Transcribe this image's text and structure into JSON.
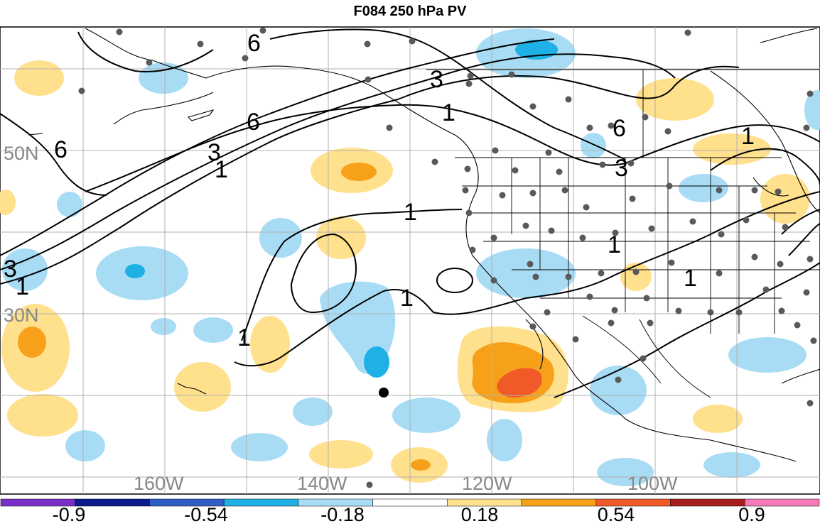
{
  "title": "F084 250 hPa PV",
  "map": {
    "longitude_labels": [
      "160W",
      "140W",
      "120W",
      "100W"
    ],
    "latitude_labels": [
      "50N",
      "30N"
    ],
    "contour_labels": [
      "6",
      "6",
      "6",
      "6",
      "3",
      "3",
      "3",
      "3",
      "1",
      "1",
      "1",
      "1",
      "1",
      "1",
      "1",
      "1",
      "1"
    ],
    "colors": {
      "light_yellow": "#ffe08c",
      "orange": "#f7a11a",
      "red_orange": "#f05a28",
      "light_blue": "#a8dcf5",
      "cyan": "#1fb0e6",
      "station_dot": "#595959"
    }
  },
  "colorbar": {
    "tick_labels": [
      "-0.9",
      "-0.54",
      "-0.18",
      "0.18",
      "0.54",
      "0.9"
    ],
    "colors": [
      "#7a2ec8",
      "#0b1c8c",
      "#2f5fc4",
      "#1fb0e6",
      "#a8dcf5",
      "#ffffff",
      "#ffe08c",
      "#f7a11a",
      "#f05a28",
      "#a81e1e",
      "#f57ab8"
    ]
  }
}
